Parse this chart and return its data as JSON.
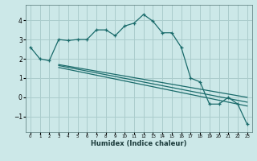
{
  "xlabel": "Humidex (Indice chaleur)",
  "bg_color": "#cce8e8",
  "grid_color": "#aacccc",
  "line_color": "#1a6b6b",
  "xlim": [
    -0.5,
    23.5
  ],
  "ylim": [
    -1.8,
    4.8
  ],
  "xticks": [
    0,
    1,
    2,
    3,
    4,
    5,
    6,
    7,
    8,
    9,
    10,
    11,
    12,
    13,
    14,
    15,
    16,
    17,
    18,
    19,
    20,
    21,
    22,
    23
  ],
  "yticks": [
    -1,
    0,
    1,
    2,
    3,
    4
  ],
  "curve1_x": [
    0,
    1,
    2,
    3,
    4,
    5,
    6,
    7,
    8,
    9,
    10,
    11,
    12,
    13,
    14,
    15,
    16,
    17,
    18,
    19,
    20,
    21,
    22,
    23
  ],
  "curve1_y": [
    2.6,
    2.0,
    1.9,
    3.0,
    2.95,
    3.0,
    3.0,
    3.5,
    3.5,
    3.2,
    3.7,
    3.85,
    4.3,
    3.95,
    3.35,
    3.35,
    2.6,
    1.0,
    0.8,
    -0.35,
    -0.35,
    0.0,
    -0.35,
    -1.4
  ],
  "curve2_x": [
    3,
    23
  ],
  "curve2_y": [
    1.7,
    0.0
  ],
  "curve3_x": [
    3,
    23
  ],
  "curve3_y": [
    1.65,
    -0.25
  ],
  "curve4_x": [
    3,
    23
  ],
  "curve4_y": [
    1.55,
    -0.45
  ]
}
